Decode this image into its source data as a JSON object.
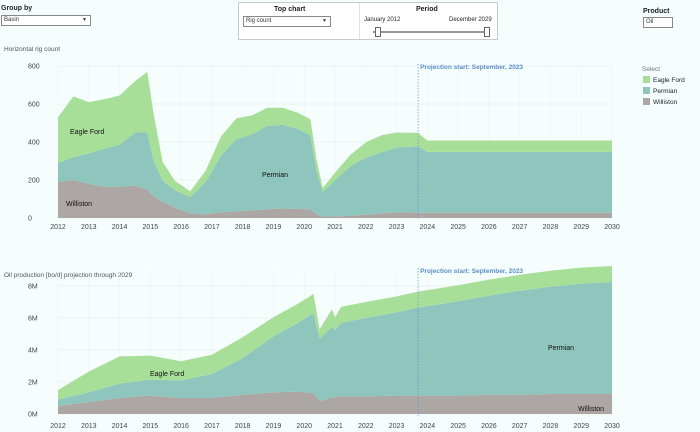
{
  "controls": {
    "group_by": {
      "label": "Group by",
      "value": "Basin"
    },
    "top_chart": {
      "label": "Top chart",
      "value": "Rig count"
    },
    "period": {
      "label": "Period",
      "start": "January 2012",
      "end": "December 2029"
    },
    "product": {
      "label": "Product",
      "value": "Oil"
    }
  },
  "legend": {
    "title": "Select",
    "items": [
      {
        "name": "Eagle Ford",
        "color": "#a8df98"
      },
      {
        "name": "Permian",
        "color": "#8ec5bc"
      },
      {
        "name": "Williston",
        "color": "#aca6a4"
      }
    ]
  },
  "chart_data": [
    {
      "type": "area",
      "stacked": true,
      "title": "Horizontal rig count",
      "x_ticks": [
        "2012",
        "2013",
        "2014",
        "2015",
        "2016",
        "2017",
        "2018",
        "2019",
        "2020",
        "2021",
        "2022",
        "2023",
        "2024",
        "2025",
        "2026",
        "2027",
        "2028",
        "2029",
        "2030"
      ],
      "y_ticks": [
        "800",
        "600",
        "400",
        "200",
        "0"
      ],
      "ylim": [
        0,
        800
      ],
      "xlim": [
        2012,
        2030
      ],
      "projection": {
        "x": 2023.7,
        "label": "Projection start: September, 2023"
      },
      "x": [
        2012.0,
        2012.5,
        2013.0,
        2013.5,
        2014.0,
        2014.5,
        2014.9,
        2015.1,
        2015.4,
        2015.8,
        2016.3,
        2016.8,
        2017.3,
        2017.8,
        2018.3,
        2018.8,
        2019.3,
        2019.8,
        2020.2,
        2020.4,
        2020.6,
        2021.0,
        2021.5,
        2022.0,
        2022.5,
        2023.0,
        2023.7,
        2024.0,
        2025.0,
        2026.0,
        2027.0,
        2028.0,
        2029.0,
        2030.0
      ],
      "series": [
        {
          "name": "Williston",
          "values": [
            190,
            200,
            180,
            165,
            165,
            170,
            150,
            115,
            85,
            55,
            25,
            20,
            30,
            35,
            40,
            45,
            50,
            48,
            45,
            20,
            8,
            8,
            12,
            18,
            25,
            30,
            28,
            28,
            28,
            28,
            28,
            28,
            28,
            28
          ]
        },
        {
          "name": "Permian",
          "values": [
            100,
            120,
            160,
            200,
            220,
            280,
            300,
            190,
            110,
            90,
            85,
            170,
            300,
            380,
            400,
            440,
            440,
            420,
            390,
            230,
            130,
            190,
            260,
            300,
            320,
            340,
            350,
            320,
            320,
            320,
            320,
            320,
            320,
            320
          ]
        },
        {
          "name": "Eagle Ford",
          "values": [
            240,
            320,
            270,
            260,
            260,
            270,
            320,
            250,
            100,
            50,
            30,
            60,
            100,
            110,
            100,
            95,
            90,
            85,
            85,
            60,
            20,
            40,
            60,
            80,
            90,
            80,
            70,
            60,
            60,
            60,
            60,
            60,
            60,
            60
          ]
        }
      ],
      "annotations": [
        "Eagle Ford",
        "Permian",
        "Williston"
      ]
    },
    {
      "type": "area",
      "stacked": true,
      "title": "Oil production [bo/d] projection through 2029",
      "x_ticks": [
        "2012",
        "2013",
        "2014",
        "2015",
        "2016",
        "2017",
        "2018",
        "2019",
        "2020",
        "2021",
        "2022",
        "2023",
        "2024",
        "2025",
        "2026",
        "2027",
        "2028",
        "2029",
        "2030"
      ],
      "y_ticks": [
        "8M",
        "6M",
        "4M",
        "2M",
        "0M"
      ],
      "ylim": [
        0,
        9
      ],
      "y_unit": "M",
      "xlim": [
        2012,
        2030
      ],
      "projection": {
        "x": 2023.7,
        "label": "Projection start: September, 2023"
      },
      "x": [
        2012.0,
        2013.0,
        2014.0,
        2015.0,
        2016.0,
        2017.0,
        2018.0,
        2019.0,
        2019.8,
        2020.3,
        2020.5,
        2020.9,
        2021.0,
        2021.2,
        2022.0,
        2023.0,
        2023.7,
        2025.0,
        2026.0,
        2027.0,
        2028.0,
        2029.0,
        2030.0
      ],
      "series": [
        {
          "name": "Williston",
          "values": [
            0.5,
            0.75,
            1.0,
            1.15,
            1.0,
            1.0,
            1.2,
            1.35,
            1.4,
            1.3,
            0.8,
            1.05,
            1.05,
            1.1,
            1.1,
            1.15,
            1.15,
            1.15,
            1.2,
            1.2,
            1.25,
            1.25,
            1.25
          ]
        },
        {
          "name": "Permian",
          "values": [
            0.4,
            0.6,
            0.9,
            1.0,
            1.1,
            1.5,
            2.3,
            3.5,
            4.3,
            5.0,
            3.9,
            4.4,
            4.2,
            4.6,
            4.9,
            5.2,
            5.5,
            5.9,
            6.2,
            6.5,
            6.7,
            6.9,
            7.0
          ]
        },
        {
          "name": "Eagle Ford",
          "values": [
            0.6,
            1.3,
            1.7,
            1.5,
            1.2,
            1.2,
            1.3,
            1.2,
            1.2,
            1.2,
            0.6,
            1.1,
            0.8,
            1.0,
            1.0,
            1.0,
            1.0,
            1.0,
            1.0,
            1.0,
            1.0,
            1.0,
            1.0
          ]
        }
      ],
      "annotations": [
        "Eagle Ford",
        "Permian",
        "Williston"
      ]
    }
  ]
}
